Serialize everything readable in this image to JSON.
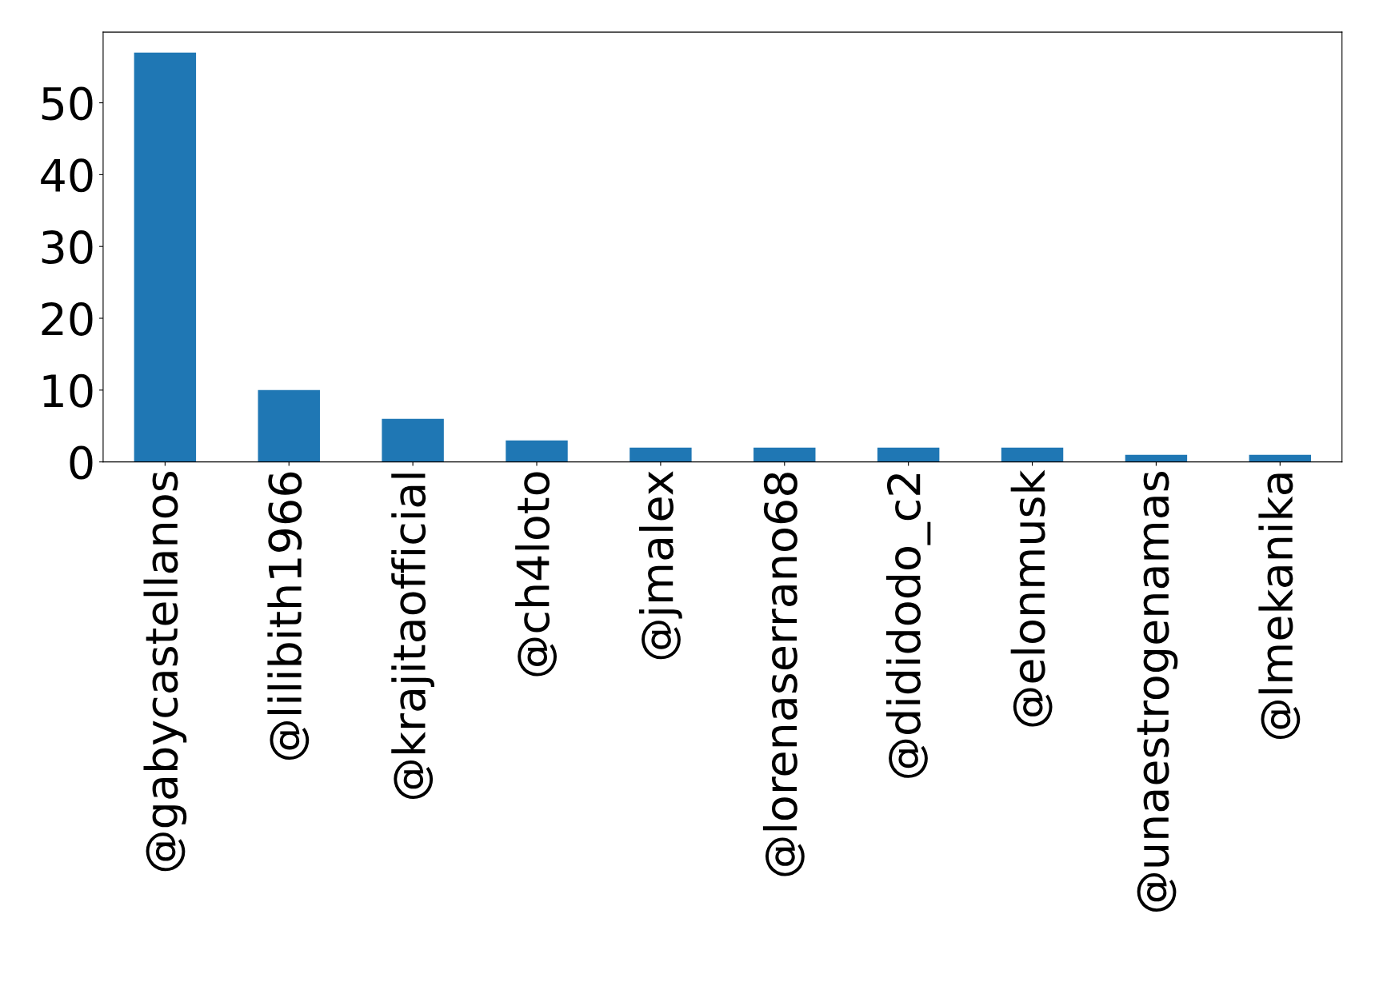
{
  "chart_data": {
    "type": "bar",
    "categories": [
      "@gabycastellanos",
      "@lilibith1966",
      "@krajitaofficial",
      "@ch4loto",
      "@jmalex",
      "@lorenaserrano68",
      "@dididodo_c2",
      "@elonmusk",
      "@unaestrogenamas",
      "@lmekanika"
    ],
    "values": [
      57,
      10,
      6,
      3,
      2,
      2,
      2,
      2,
      1,
      1
    ],
    "color": "#1f77b4",
    "ylim": [
      0,
      59.85
    ],
    "yticks": [
      0,
      10,
      20,
      30,
      40,
      50
    ],
    "grid": false
  }
}
